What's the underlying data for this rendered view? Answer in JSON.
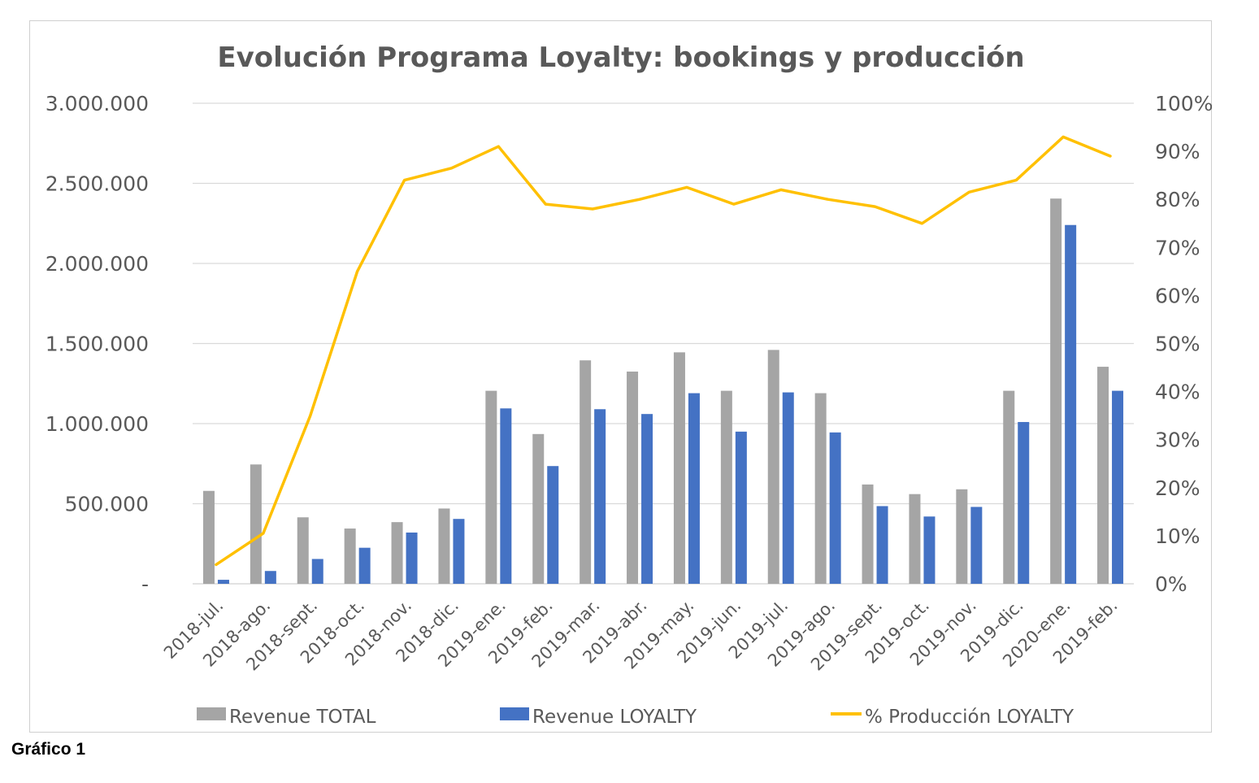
{
  "caption": "Gráfico 1",
  "chart_data": {
    "type": "bar",
    "title": "Evolución Programa Loyalty: bookings y producción",
    "xlabel": "",
    "ylabel": "",
    "y2label": "",
    "categories": [
      "2018-jul.",
      "2018-ago.",
      "2018-sept.",
      "2018-oct.",
      "2018-nov.",
      "2018-dic.",
      "2019-ene.",
      "2019-feb.",
      "2019-mar.",
      "2019-abr.",
      "2019-may.",
      "2019-jun.",
      "2019-jul.",
      "2019-ago.",
      "2019-sept.",
      "2019-oct.",
      "2019-nov.",
      "2019-dic.",
      "2020-ene.",
      "2019-feb."
    ],
    "series": [
      {
        "name": "Revenue TOTAL",
        "type": "bar",
        "axis": "left",
        "color": "#a5a5a5",
        "values": [
          580000,
          745000,
          415000,
          345000,
          385000,
          470000,
          1205000,
          935000,
          1395000,
          1325000,
          1445000,
          1205000,
          1460000,
          1190000,
          620000,
          560000,
          590000,
          1205000,
          2405000,
          1355000
        ]
      },
      {
        "name": "Revenue LOYALTY",
        "type": "bar",
        "axis": "left",
        "color": "#4472c4",
        "values": [
          25000,
          80000,
          155000,
          225000,
          320000,
          405000,
          1095000,
          735000,
          1090000,
          1060000,
          1190000,
          950000,
          1195000,
          945000,
          485000,
          420000,
          480000,
          1010000,
          2240000,
          1205000
        ]
      },
      {
        "name": "% Producción LOYALTY",
        "type": "line",
        "axis": "right",
        "color": "#ffc000",
        "values": [
          0.04,
          0.105,
          0.35,
          0.65,
          0.84,
          0.865,
          0.91,
          0.79,
          0.78,
          0.8,
          0.825,
          0.79,
          0.82,
          0.8,
          0.785,
          0.75,
          0.815,
          0.84,
          0.93,
          0.89
        ]
      }
    ],
    "ylim": [
      0,
      3000000
    ],
    "y_ticks": [
      0,
      500000,
      1000000,
      1500000,
      2000000,
      2500000,
      3000000
    ],
    "y_tick_labels": [
      "-",
      "500.000",
      "1.000.000",
      "1.500.000",
      "2.000.000",
      "2.500.000",
      "3.000.000"
    ],
    "y2lim": [
      0,
      1
    ],
    "y2_ticks": [
      0,
      0.1,
      0.2,
      0.3,
      0.4,
      0.5,
      0.6,
      0.7,
      0.8,
      0.9,
      1.0
    ],
    "y2_tick_labels": [
      "0%",
      "10%",
      "20%",
      "30%",
      "40%",
      "50%",
      "60%",
      "70%",
      "80%",
      "90%",
      "100%"
    ],
    "grid": true,
    "gridline_color": "#d9d9d9",
    "legend_position": "bottom"
  }
}
